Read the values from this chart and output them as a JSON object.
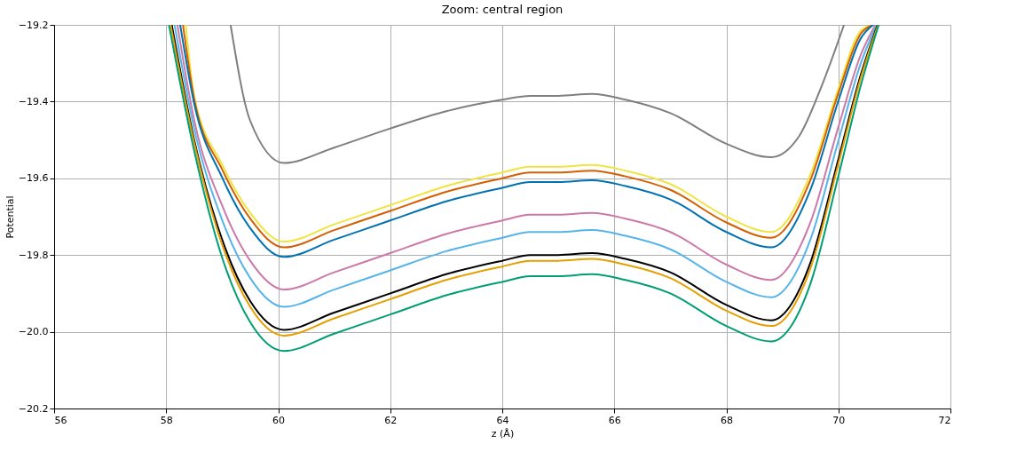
{
  "chart_data": {
    "type": "line",
    "title": "Zoom: central region",
    "xlabel": "z (Å)",
    "ylabel": "Potential",
    "xlim": [
      56,
      72
    ],
    "xticks": [
      56,
      58,
      60,
      62,
      64,
      66,
      68,
      70,
      72
    ],
    "ylim": [
      -20.2,
      -19.2
    ],
    "yticks": [
      {
        "value": -20.2,
        "label": "−20.2"
      },
      {
        "value": -20.0,
        "label": "−20.0"
      },
      {
        "value": -19.8,
        "label": "−19.8"
      },
      {
        "value": -19.6,
        "label": "−19.6"
      },
      {
        "value": -19.4,
        "label": "−19.4"
      },
      {
        "value": -19.2,
        "label": "−19.2"
      }
    ],
    "grid": true,
    "legend": false,
    "marker": "none",
    "line_style": "solid",
    "series": [
      {
        "color": "#7f7f7f",
        "x": [
          59.15,
          59.5,
          60.1,
          61,
          62,
          63,
          64,
          64.5,
          65,
          65.6,
          66.2,
          67,
          68,
          68.8,
          69.3,
          69.7,
          70.1
        ],
        "values": [
          -19.2,
          -19.45,
          -19.56,
          -19.52,
          -19.47,
          -19.425,
          -19.395,
          -19.385,
          -19.385,
          -19.38,
          -19.395,
          -19.43,
          -19.51,
          -19.545,
          -19.49,
          -19.36,
          -19.2
        ]
      },
      {
        "color": "#f0e442",
        "x": [
          58.35,
          58.5,
          59,
          59.5,
          60.1,
          61,
          62,
          63,
          64,
          64.5,
          65,
          65.6,
          66.2,
          67,
          68,
          68.8,
          69.5,
          70,
          70.4,
          70.61
        ],
        "values": [
          -19.2,
          -19.385,
          -19.564,
          -19.69,
          -19.765,
          -19.72,
          -19.67,
          -19.62,
          -19.585,
          -19.57,
          -19.57,
          -19.565,
          -19.58,
          -19.615,
          -19.7,
          -19.74,
          -19.59,
          -19.366,
          -19.215,
          -19.2
        ]
      },
      {
        "color": "#d55e00",
        "x": [
          58.3,
          58.5,
          59,
          59.5,
          60.1,
          61,
          62,
          63,
          64,
          64.5,
          65,
          65.6,
          66.2,
          67,
          68,
          68.8,
          69.5,
          70,
          70.4,
          70.61
        ],
        "values": [
          -19.2,
          -19.393,
          -19.577,
          -19.705,
          -19.78,
          -19.735,
          -19.685,
          -19.635,
          -19.6,
          -19.585,
          -19.585,
          -19.58,
          -19.595,
          -19.63,
          -19.715,
          -19.755,
          -19.605,
          -19.378,
          -19.223,
          -19.2
        ]
      },
      {
        "color": "#0072b2",
        "x": [
          58.25,
          58.5,
          59,
          59.5,
          60.1,
          61,
          62,
          63,
          64,
          64.5,
          65,
          65.6,
          66.2,
          67,
          68,
          68.8,
          69.5,
          70,
          70.4,
          70.62
        ],
        "values": [
          -19.2,
          -19.405,
          -19.598,
          -19.73,
          -19.805,
          -19.76,
          -19.71,
          -19.66,
          -19.625,
          -19.61,
          -19.61,
          -19.605,
          -19.62,
          -19.655,
          -19.74,
          -19.78,
          -19.63,
          -19.398,
          -19.235,
          -19.2
        ]
      },
      {
        "color": "#cc79a7",
        "x": [
          58.2,
          58.5,
          59,
          59.5,
          60.1,
          61,
          62,
          63,
          64,
          64.5,
          65,
          65.6,
          66.2,
          67,
          68,
          68.8,
          69.5,
          70,
          70.4,
          70.66
        ],
        "values": [
          -19.2,
          -19.448,
          -19.671,
          -19.815,
          -19.89,
          -19.845,
          -19.795,
          -19.745,
          -19.71,
          -19.695,
          -19.695,
          -19.69,
          -19.705,
          -19.74,
          -19.825,
          -19.865,
          -19.715,
          -19.466,
          -19.278,
          -19.2
        ]
      },
      {
        "color": "#56b4e9",
        "x": [
          58.15,
          58.5,
          59,
          59.5,
          60.1,
          61,
          62,
          63,
          64,
          64.5,
          65,
          65.6,
          66.2,
          67,
          68,
          68.8,
          69.5,
          70,
          70.4,
          70.68
        ],
        "values": [
          -19.2,
          -19.47,
          -19.709,
          -19.86,
          -19.935,
          -19.89,
          -19.84,
          -19.79,
          -19.755,
          -19.74,
          -19.74,
          -19.735,
          -19.75,
          -19.785,
          -19.87,
          -19.91,
          -19.76,
          -19.502,
          -19.3,
          -19.2
        ]
      },
      {
        "color": "#000000",
        "x": [
          58.1,
          58.5,
          59,
          59.5,
          60.1,
          61,
          62,
          63,
          64,
          64.5,
          65,
          65.6,
          66.2,
          67,
          68,
          68.8,
          69.5,
          70,
          70.4,
          70.7
        ],
        "values": [
          -19.2,
          -19.5,
          -19.76,
          -19.92,
          -19.995,
          -19.95,
          -19.9,
          -19.85,
          -19.815,
          -19.8,
          -19.8,
          -19.795,
          -19.81,
          -19.845,
          -19.93,
          -19.97,
          -19.82,
          -19.55,
          -19.33,
          -19.2
        ]
      },
      {
        "color": "#e69f00",
        "x": [
          58.08,
          58.5,
          59,
          59.5,
          60.1,
          61,
          62,
          63,
          64,
          64.5,
          65,
          65.6,
          66.2,
          67,
          68,
          68.8,
          69.5,
          70,
          70.4,
          70.71
        ],
        "values": [
          -19.2,
          -19.508,
          -19.773,
          -19.935,
          -20.01,
          -19.965,
          -19.915,
          -19.865,
          -19.83,
          -19.815,
          -19.815,
          -19.81,
          -19.825,
          -19.86,
          -19.945,
          -19.985,
          -19.835,
          -19.562,
          -19.338,
          -19.2
        ]
      },
      {
        "color": "#009e73",
        "x": [
          58.05,
          58.5,
          59,
          59.5,
          60.1,
          61,
          62,
          63,
          64,
          64.5,
          65,
          65.6,
          66.2,
          67,
          68,
          68.8,
          69.5,
          70,
          70.4,
          70.72
        ],
        "values": [
          -19.2,
          -19.528,
          -19.807,
          -19.975,
          -20.05,
          -20.005,
          -19.955,
          -19.905,
          -19.87,
          -19.855,
          -19.855,
          -19.85,
          -19.865,
          -19.9,
          -19.985,
          -20.025,
          -19.875,
          -19.594,
          -19.358,
          -19.2
        ]
      }
    ]
  }
}
